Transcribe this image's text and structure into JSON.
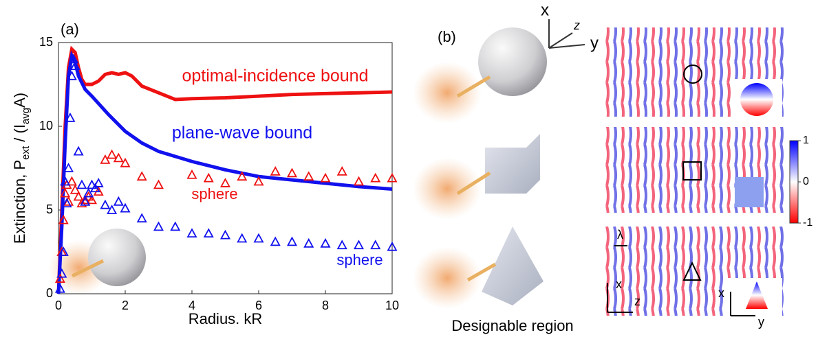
{
  "chart_data": {
    "type": "line",
    "panel_label": "(a)",
    "xlabel": "Radius. kR",
    "ylabel_parts": [
      {
        "text": "Extinction, P"
      },
      {
        "text": "ext",
        "sub": true
      },
      {
        "text": " / (I"
      },
      {
        "text": "avg",
        "sub": true
      },
      {
        "text": "A)"
      }
    ],
    "xlim": [
      0,
      10
    ],
    "xticks": [
      0,
      2,
      4,
      6,
      8,
      10
    ],
    "ylim": [
      0,
      15
    ],
    "yticks": [
      0,
      5,
      10,
      15
    ],
    "series": [
      {
        "name": "optimal-incidence bound",
        "color": "#ee1111",
        "mode": "line",
        "x": [
          0,
          0.1,
          0.2,
          0.3,
          0.4,
          0.5,
          0.6,
          0.7,
          0.8,
          1.0,
          1.2,
          1.4,
          1.6,
          1.8,
          2.0,
          2.2,
          2.5,
          3.0,
          3.5,
          4,
          5,
          6,
          7,
          8,
          9,
          10
        ],
        "values": [
          0,
          5,
          10,
          13.5,
          14.6,
          14.4,
          13.5,
          12.8,
          12.5,
          12.5,
          12.7,
          13.1,
          13.2,
          13.1,
          13.2,
          13.0,
          12.4,
          12.0,
          11.6,
          11.65,
          11.7,
          11.8,
          11.9,
          11.95,
          12.0,
          12.05
        ]
      },
      {
        "name": "plane-wave bound",
        "color": "#1111ee",
        "mode": "line",
        "x": [
          0,
          0.1,
          0.2,
          0.3,
          0.4,
          0.5,
          0.6,
          0.8,
          1.0,
          1.5,
          2,
          2.5,
          3,
          4,
          5,
          6,
          7,
          8,
          9,
          10
        ],
        "values": [
          0,
          4,
          9,
          13,
          14.2,
          13.8,
          13,
          12.2,
          11.8,
          10.7,
          9.7,
          9.0,
          8.5,
          7.9,
          7.4,
          7.0,
          6.8,
          6.6,
          6.4,
          6.25
        ]
      },
      {
        "name": "sphere",
        "color": "#ee1111",
        "mode": "markers",
        "x": [
          0.05,
          0.1,
          0.15,
          0.2,
          0.25,
          0.3,
          0.4,
          0.5,
          0.6,
          0.7,
          0.8,
          0.9,
          1.0,
          1.2,
          1.4,
          1.6,
          1.8,
          2,
          2.5,
          3,
          4,
          4.5,
          5,
          5.5,
          6,
          6.5,
          7,
          7.5,
          8,
          8.5,
          9,
          9.5,
          10
        ],
        "values": [
          0.9,
          2.5,
          4.4,
          6,
          6.5,
          5.5,
          6.7,
          6.2,
          5.8,
          5.4,
          5.6,
          5.8,
          5.6,
          6.1,
          8,
          8.3,
          8.1,
          7.8,
          7,
          6.5,
          7.1,
          6.9,
          6.6,
          7,
          6.7,
          7.3,
          7.2,
          7,
          6.9,
          7.3,
          6.7,
          6.9,
          6.9
        ]
      },
      {
        "name": "sphere",
        "color": "#1111ee",
        "mode": "markers",
        "x": [
          0.05,
          0.1,
          0.15,
          0.2,
          0.25,
          0.3,
          0.35,
          0.4,
          0.45,
          0.5,
          0.6,
          0.7,
          0.8,
          0.9,
          1.0,
          1.1,
          1.2,
          1.4,
          1.6,
          1.8,
          2,
          2.5,
          3,
          3.5,
          4,
          4.5,
          5,
          5.5,
          6,
          6.5,
          7,
          7.5,
          8,
          8.5,
          9,
          9.5,
          10
        ],
        "values": [
          0.3,
          1.2,
          2.5,
          6.7,
          5.4,
          7.5,
          10.5,
          13,
          14,
          13.6,
          8.5,
          6.5,
          5.5,
          6,
          6.5,
          6.3,
          6.6,
          5.3,
          5,
          5.5,
          5.1,
          4.5,
          4,
          4,
          3.6,
          3.6,
          3.5,
          3.3,
          3.3,
          3.1,
          3.1,
          3.0,
          3.0,
          2.9,
          2.9,
          2.9,
          2.8
        ]
      }
    ]
  },
  "panel_b": {
    "label": "(b)",
    "caption": "Designable region",
    "axes": {
      "x": "x",
      "y": "y",
      "z": "z"
    },
    "map_axes": {
      "x": "x",
      "z": "z",
      "lambda": "λ",
      "inset_x": "x",
      "inset_y": "y"
    },
    "colorbar": {
      "lim": [
        -1,
        1
      ],
      "ticks": [
        1,
        0,
        -1
      ]
    }
  }
}
